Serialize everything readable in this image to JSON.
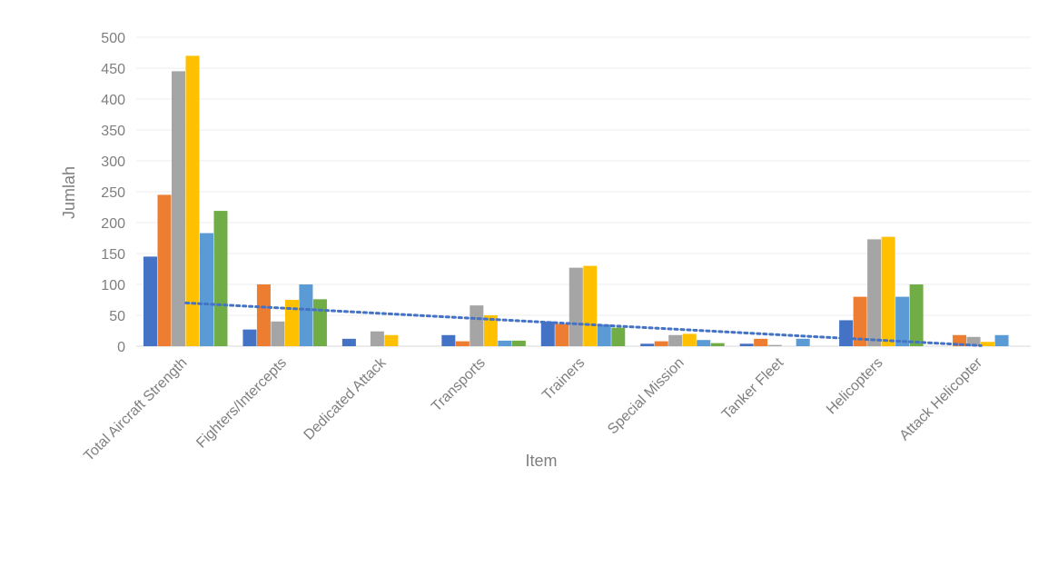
{
  "chart_data": {
    "type": "bar",
    "xlabel": "Item",
    "ylabel": "Jumlah",
    "ylim": [
      0,
      500
    ],
    "yticks": [
      0,
      50,
      100,
      150,
      200,
      250,
      300,
      350,
      400,
      450,
      500
    ],
    "grid": true,
    "categories": [
      "Total Aircraft Strength",
      "Fighters/Intercepts",
      "Dedicated Attack",
      "Transports",
      "Trainers",
      "Special Mission",
      "Tanker Fleet",
      "Helicopters",
      "Attack Helicopter"
    ],
    "series": [
      {
        "color": "#4472c4",
        "values": [
          145,
          27,
          12,
          18,
          40,
          4,
          4,
          42,
          0
        ]
      },
      {
        "color": "#ed7d31",
        "values": [
          245,
          100,
          0,
          8,
          36,
          8,
          12,
          80,
          18
        ]
      },
      {
        "color": "#a5a5a5",
        "values": [
          445,
          40,
          24,
          66,
          127,
          18,
          2,
          173,
          15
        ]
      },
      {
        "color": "#ffc000",
        "values": [
          470,
          75,
          18,
          50,
          130,
          20,
          0,
          177,
          7
        ]
      },
      {
        "color": "#5b9bd5",
        "values": [
          183,
          100,
          0,
          9,
          35,
          10,
          12,
          80,
          18
        ]
      },
      {
        "color": "#70ad47",
        "values": [
          219,
          76,
          0,
          9,
          30,
          5,
          0,
          100,
          0
        ]
      }
    ],
    "trendline": {
      "type": "linear",
      "color": "#4472c4",
      "style": "dotted",
      "start_value": 70,
      "end_value": 1
    }
  }
}
